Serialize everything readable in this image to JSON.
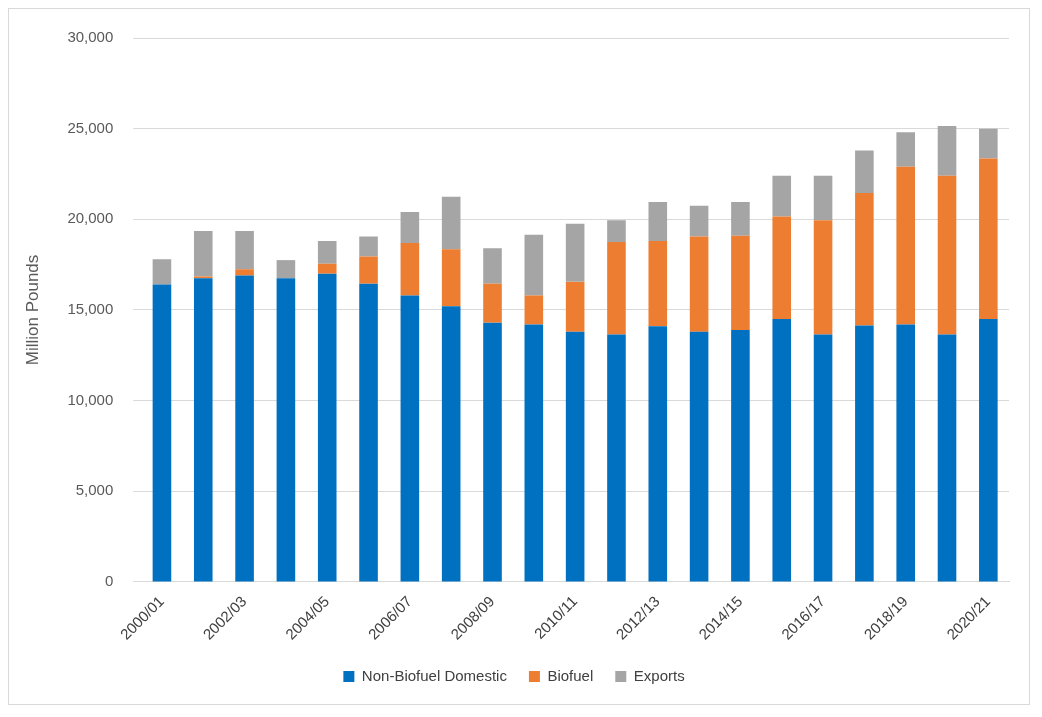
{
  "chart_data": {
    "type": "bar",
    "stacked": true,
    "ylabel": "Million Pounds",
    "categories": [
      "2000/01",
      null,
      "2002/03",
      null,
      "2004/05",
      null,
      "2006/07",
      null,
      "2008/09",
      null,
      "2010/11",
      null,
      "2012/13",
      null,
      "2014/15",
      null,
      "2016/17",
      null,
      "2018/19",
      null,
      "2020/21"
    ],
    "series": [
      {
        "name": "Non-Biofuel Domestic",
        "color": "#0070c0",
        "values": [
          16400,
          16750,
          16900,
          16750,
          17000,
          16450,
          15800,
          15200,
          14300,
          14200,
          13800,
          13650,
          14100,
          13800,
          13900,
          14500,
          13650,
          14150,
          14200,
          13650,
          14500
        ]
      },
      {
        "name": "Biofuel",
        "color": "#ed7d31",
        "values": [
          0,
          100,
          350,
          0,
          550,
          1500,
          2900,
          3150,
          2150,
          1600,
          2750,
          5100,
          4700,
          5250,
          5200,
          5650,
          6300,
          7300,
          8700,
          8750,
          8850
        ]
      },
      {
        "name": "Exports",
        "color": "#a5a5a5",
        "values": [
          1400,
          2500,
          2100,
          1000,
          1250,
          1100,
          1700,
          2900,
          1950,
          3350,
          3200,
          1200,
          2150,
          1700,
          1850,
          2250,
          2450,
          2350,
          1900,
          2750,
          1650
        ]
      }
    ],
    "ylim": [
      0,
      30000
    ],
    "yticks": [
      0,
      {
        "value": 5000,
        "label": "5,000"
      },
      {
        "value": 10000,
        "label": "10,000"
      },
      {
        "value": 15000,
        "label": "15,000"
      },
      {
        "value": 20000,
        "label": "20,000"
      },
      {
        "value": 25000,
        "label": "25,000"
      },
      {
        "value": 30000,
        "label": "30,000"
      }
    ],
    "grid": "y",
    "legend": "bottom"
  }
}
